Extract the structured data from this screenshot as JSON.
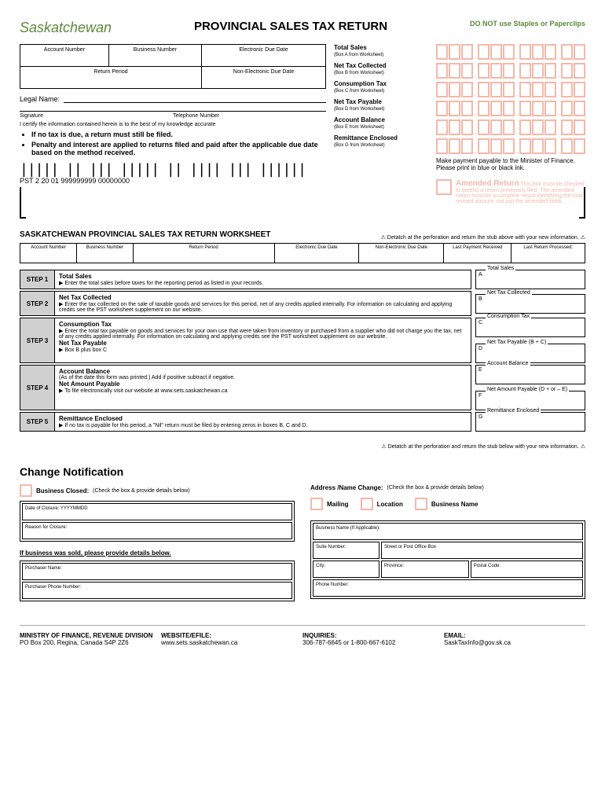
{
  "header": {
    "logo": "Saskatchewan",
    "title": "PROVINCIAL SALES TAX RETURN",
    "staples_warning": "DO NOT use Staples or Paperclips"
  },
  "info_fields": {
    "account_number": "Account Number",
    "business_number": "Business Number",
    "electronic_due": "Electronic Due Date",
    "return_period": "Return Period",
    "non_electronic_due": "Non-Electronic Due Date"
  },
  "legal_name_label": "Legal Name:",
  "signature_label": "Signature",
  "telephone_label": "Telephone Number",
  "certify_text": "I certify the information contained herein is to the best of my knowledge accurate",
  "bullets": [
    "If no tax is due, a return must still be filed.",
    "Penalty and interest are applied to returns filed and paid after the applicable due date based on the method received."
  ],
  "barcode_text": "PST 2  20 01  999999999 00000000",
  "tax_items": [
    {
      "label": "Total Sales",
      "sublabel": "(Box A from Worksheet)"
    },
    {
      "label": "Net Tax Collected",
      "sublabel": "(Box B from Worksheet)"
    },
    {
      "label": "Consumption Tax",
      "sublabel": "(Box C from Worksheet)"
    },
    {
      "label": "Net Tax Payable",
      "sublabel": "(Box D from Worksheet)"
    },
    {
      "label": "Account Balance",
      "sublabel": "(Box E from Worksheet)"
    },
    {
      "label": "Remittance Enclosed",
      "sublabel": "(Box G from Worksheet)"
    }
  ],
  "payment_note": "Make payment payable to the Minister of Finance. Please print in blue or black ink.",
  "amended": {
    "title": "Amended Return",
    "text": "This box must be checked to amend a return previously filed. The amended return must be a complete return identifying the total revised amount, not just the amended fields."
  },
  "worksheet": {
    "title": "SASKATCHEWAN PROVINCIAL SALES TAX RETURN WORKSHEET",
    "detach": "⚠ Detatch at the perforation and return the stub above with your new information. ⚠",
    "headers": [
      "Account Number",
      "Business Number",
      "Return Period",
      "Electronic Due Date",
      "Non-Electronic Due Date",
      "Last Payment Received",
      "Last Return Processed:"
    ],
    "steps": [
      {
        "num": "STEP 1",
        "title": "Total Sales",
        "text": "▶ Enter the total sales before taxes for the reporting period as listed in your records.",
        "boxes": [
          {
            "letter": "A",
            "label": "Total Sales"
          }
        ]
      },
      {
        "num": "STEP 2",
        "title": "Net Tax Collected",
        "text": "▶ Enter the tax collected on the sale of taxable goods and services for this period, net of any credits applied internally. For information on calculating and applying credits see the PST worksheet supplement on our website.",
        "boxes": [
          {
            "letter": "B",
            "label": "Net Tax Collected"
          }
        ]
      },
      {
        "num": "STEP 3",
        "title": "Consumption Tax",
        "text": "▶ Enter the total tax payable on goods and services for your own use that were taken from inventory or purchased from a supplier who did not charge you the tax, net of any credits applied internally. For information on calculating and applying credits see the PST worksheet supplement on our website.",
        "title2": "Net Tax Payable",
        "text2": "▶     Box B plus box C",
        "boxes": [
          {
            "letter": "C",
            "label": "Consumption Tax"
          },
          {
            "letter": "D",
            "label": "Net Tax Payable (B + C)"
          }
        ]
      },
      {
        "num": "STEP 4",
        "title": "Account Balance",
        "text": "(As of the date this form was printed.) Add if positive subtract if negative.",
        "title2": "Net Amount Payable",
        "text2": "▶     To file electronically visit our website at www.sets.saskatchewan.ca",
        "boxes": [
          {
            "letter": "E",
            "label": "Account Balance"
          },
          {
            "letter": "F",
            "label": "Net Amount Payable (D + or – E)"
          }
        ]
      },
      {
        "num": "STEP 5",
        "title": "Remittance Enclosed",
        "text": "▶     If no tax is payable for this period, a \"Nil\" return must be filed by entering zeros in boxes B, C and D.",
        "boxes": [
          {
            "letter": "G",
            "label": "Remittance Enclosed"
          }
        ]
      }
    ]
  },
  "change": {
    "detach": "⚠ Detatch at the perforation and return the stub below with your new information. ⚠",
    "title": "Change Notification",
    "business_closed": "Business Closed:",
    "check_note": "(Check the box & provide details below)",
    "date_closure": "Date of Closure: YYYYMMDD",
    "reason_closure": "Reason for Closure:",
    "sold_title": "If business was sold, please provide details below.",
    "purchaser_name": "Purchaser Name:",
    "purchaser_phone": "Purchaser Phone Number:",
    "address_change": "Address /Name Change:",
    "mailing": "Mailing",
    "location": "Location",
    "business_name": "Business Name",
    "addr_fields": {
      "bn": "Business Name (If Applicable):",
      "suite": "Suite Number:",
      "street": "Street or Post Office Box",
      "city": "City:",
      "province": "Province:",
      "postal": "Postal Code:",
      "phone": "Phone Number:"
    }
  },
  "footer": {
    "ministry_title": "MINISTRY OF FINANCE, REVENUE DIVISION",
    "ministry_addr": "PO Box 200, Regina, Canada  S4P 2Z6",
    "website_title": "WEBSITE/EFILE:",
    "website": "www.sets.saskatchewan.ca",
    "inquiries_title": "INQUIRIES:",
    "inquiries": "306-787-6645 or 1-800-667-6102",
    "email_title": "EMAIL:",
    "email": "SaskTaxInfo@gov.sk.ca"
  }
}
